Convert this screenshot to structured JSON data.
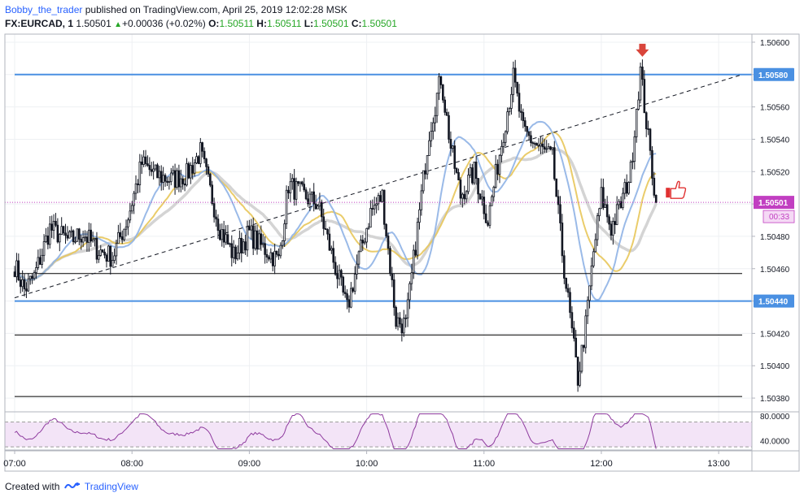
{
  "header": {
    "author": "Bobby_the_trader",
    "published_text": "published on TradingView.com, April 25, 2019 12:02:28 MSK",
    "symbol": "FX:EURCAD, 1",
    "last": "1.50501",
    "change": "+0.00036 (+0.02%)",
    "o_label": "O:",
    "o_value": "1.50511",
    "h_label": "H:",
    "h_value": "1.50511",
    "l_label": "L:",
    "l_value": "1.50501",
    "c_label": "C:",
    "c_value": "1.50501"
  },
  "footer": {
    "created_with": "Created with",
    "brand": "TradingView"
  },
  "colors": {
    "up": "#131722",
    "down": "#131722",
    "level_blue": "#4a90e2",
    "level_black": "#000000",
    "ma_blue": "#8fb3e6",
    "ma_yellow": "#e8c65a",
    "ma_grey": "#cfcfcf",
    "rsi_line": "#8e3a9e",
    "rsi_band": "#f3e4f7",
    "price_tag": "#c13fc1",
    "arrow_red": "#d9453b"
  },
  "chart_data": {
    "type": "candlestick",
    "symbol": "FX:EURCAD",
    "interval": "1",
    "price_axis": {
      "ylim": [
        1.50372,
        1.50605
      ],
      "ticks": [
        "1.50600",
        "1.50580",
        "1.50560",
        "1.50540",
        "1.50520",
        "1.50500",
        "1.50480",
        "1.50460",
        "1.50440",
        "1.50420",
        "1.50400",
        "1.50380"
      ],
      "ticks_numeric": [
        1.506,
        1.5058,
        1.5056,
        1.5054,
        1.5052,
        1.505,
        1.5048,
        1.5046,
        1.5044,
        1.5042,
        1.504,
        1.5038
      ]
    },
    "time_axis": {
      "labels": [
        "07:00",
        "08:00",
        "09:00",
        "10:00",
        "11:00",
        "12:00",
        "13:00"
      ],
      "range_minutes": [
        -5,
        377
      ]
    },
    "current_price": "1.50501",
    "countdown": "00:33",
    "levels": [
      {
        "price": 1.5058,
        "label": "1.50580",
        "color": "blue",
        "from_min": 0,
        "to_min": 377
      },
      {
        "price": 1.5044,
        "label": "1.50440",
        "color": "blue",
        "from_min": 0,
        "to_min": 377
      },
      {
        "price": 1.50457,
        "color": "black",
        "from_min": 0,
        "to_min": 372
      },
      {
        "price": 1.50419,
        "color": "black",
        "from_min": 0,
        "to_min": 372
      },
      {
        "price": 1.50381,
        "color": "black",
        "from_min": 0,
        "to_min": 372
      }
    ],
    "trendline": {
      "start": [
        0,
        1.50442
      ],
      "end": [
        372,
        1.5058
      ],
      "style": "dashed"
    },
    "anchors": [
      [
        0,
        1.50462
      ],
      [
        5,
        1.50447
      ],
      [
        10,
        1.50455
      ],
      [
        18,
        1.50485
      ],
      [
        28,
        1.50477
      ],
      [
        35,
        1.50482
      ],
      [
        42,
        1.50472
      ],
      [
        50,
        1.50467
      ],
      [
        58,
        1.50492
      ],
      [
        65,
        1.50525
      ],
      [
        72,
        1.50518
      ],
      [
        80,
        1.50515
      ],
      [
        88,
        1.50518
      ],
      [
        95,
        1.50532
      ],
      [
        100,
        1.50508
      ],
      [
        105,
        1.50485
      ],
      [
        112,
        1.50468
      ],
      [
        120,
        1.50482
      ],
      [
        125,
        1.50475
      ],
      [
        135,
        1.50465
      ],
      [
        140,
        1.50512
      ],
      [
        148,
        1.50505
      ],
      [
        155,
        1.505
      ],
      [
        163,
        1.50465
      ],
      [
        170,
        1.50435
      ],
      [
        175,
        1.50462
      ],
      [
        182,
        1.50495
      ],
      [
        188,
        1.50505
      ],
      [
        195,
        1.50428
      ],
      [
        200,
        1.50425
      ],
      [
        208,
        1.50505
      ],
      [
        212,
        1.50545
      ],
      [
        218,
        1.50578
      ],
      [
        223,
        1.50535
      ],
      [
        228,
        1.50505
      ],
      [
        235,
        1.5052
      ],
      [
        242,
        1.5049
      ],
      [
        250,
        1.50545
      ],
      [
        255,
        1.50578
      ],
      [
        260,
        1.50545
      ],
      [
        268,
        1.50535
      ],
      [
        275,
        1.50528
      ],
      [
        280,
        1.5047
      ],
      [
        285,
        1.5042
      ],
      [
        288,
        1.50392
      ],
      [
        292,
        1.50425
      ],
      [
        296,
        1.5047
      ],
      [
        300,
        1.50505
      ],
      [
        305,
        1.50485
      ],
      [
        310,
        1.505
      ],
      [
        315,
        1.5052
      ],
      [
        318,
        1.5056
      ],
      [
        320,
        1.50582
      ],
      [
        324,
        1.5054
      ],
      [
        328,
        1.50501
      ]
    ],
    "rsi": {
      "levels": [
        "80.0000",
        "40.0000"
      ],
      "levels_numeric": [
        80,
        40
      ],
      "band": [
        70,
        30
      ],
      "ylim": [
        25,
        85
      ]
    },
    "annotations": [
      {
        "type": "arrow-down",
        "at_min": 321,
        "price": 1.50593
      },
      {
        "type": "thumbs-up",
        "at_min": 333,
        "price": 1.5051
      }
    ]
  }
}
